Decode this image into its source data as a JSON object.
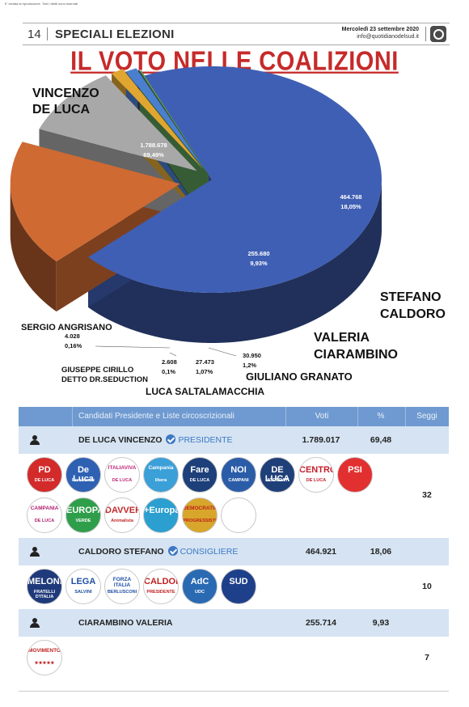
{
  "page": {
    "copyright": "E' vietata la riproduzione. Tutti i diritti sono riservati",
    "page_number": "14",
    "section": "SPECIALI ELEZIONI",
    "date": "Mercoledì 23 settembre 2020",
    "email": "info@quotidianodelsud.it"
  },
  "chart_data": {
    "type": "pie",
    "title": "IL VOTO NELLE COALIZIONI",
    "slices": [
      {
        "name": "VINCENZO DE LUCA",
        "value": 1788678,
        "value_label": "1.788.678",
        "percent_label": "69,49%",
        "percent": 69.49,
        "color": "#3f5fb4"
      },
      {
        "name": "STEFANO CALDORO",
        "value": 464768,
        "value_label": "464.768",
        "percent_label": "18,05%",
        "percent": 18.05,
        "color": "#cf6a33"
      },
      {
        "name": "VALERIA CIARAMBINO",
        "value": 255680,
        "value_label": "255.680",
        "percent_label": "9,93%",
        "percent": 9.93,
        "color": "#a8a8a8"
      },
      {
        "name": "GIULIANO GRANATO",
        "value": 30950,
        "value_label": "30.950",
        "percent_label": "1,2%",
        "percent": 1.2,
        "color": "#e0a630"
      },
      {
        "name": "LUCA SALTALAMACCHIA",
        "value": 27473,
        "value_label": "27.473",
        "percent_label": "1,07%",
        "percent": 1.07,
        "color": "#4a7fd0"
      },
      {
        "name": "GIUSEPPE CIRILLO DETTO DR.SEDUCTION",
        "value": 2608,
        "value_label": "2.608",
        "percent_label": "0,1%",
        "percent": 0.1,
        "color": "#3a3a3a"
      },
      {
        "name": "SERGIO ANGRISANO",
        "value": 4028,
        "value_label": "4.028",
        "percent_label": "0,16%",
        "percent": 0.16,
        "color": "#5a9a5a"
      }
    ],
    "labels": {
      "de_luca_1": "VINCENZO",
      "de_luca_2": "DE LUCA",
      "caldoro_1": "STEFANO",
      "caldoro_2": "CALDORO",
      "ciarambino_1": "VALERIA",
      "ciarambino_2": "CIARAMBINO",
      "granato": "GIULIANO GRANATO",
      "saltalamacchia": "LUCA SALTALAMACCHIA",
      "cirillo_1": "GIUSEPPE CIRILLO",
      "cirillo_2": "DETTO DR.SEDUCTION",
      "angrisano": "SERGIO ANGRISANO"
    }
  },
  "table": {
    "headers": {
      "candidates": "Candidati Presidente e Liste circoscrizionali",
      "votes": "Voti",
      "percent": "%",
      "seats": "Seggi"
    },
    "candidates": [
      {
        "name": "DE LUCA VINCENZO",
        "role": "PRESIDENTE",
        "votes": "1.789.017",
        "percent": "69,48",
        "seats": "32",
        "lists": [
          {
            "line1": "PD",
            "line2": "DE LUCA",
            "color": "#d32a2a",
            "text_color": "#ffffff"
          },
          {
            "line1": "De Luca",
            "line2": "Presidente",
            "color": "#2f61b3",
            "text_color": "#ffffff"
          },
          {
            "line1": "ITALIAVIVA",
            "line2": "DE LUCA",
            "color": "#ffffff",
            "text_color": "#c0287a"
          },
          {
            "line1": "Campania",
            "line2": "libera",
            "color": "#3b9fd8",
            "text_color": "#ffffff"
          },
          {
            "line1": "Fare",
            "line2": "DE LUCA",
            "color": "#1d3f7a",
            "text_color": "#ffffff"
          },
          {
            "line1": "NOI",
            "line2": "CAMPANI",
            "color": "#2a5ca8",
            "text_color": "#ffffff"
          },
          {
            "line1": "DE LUCA",
            "line2": "MODERATI",
            "color": "#1f3f78",
            "text_color": "#ffffff"
          },
          {
            "line1": "CENTRO",
            "line2": "DE LUCA",
            "color": "#ffffff",
            "text_color": "#c41e2a"
          },
          {
            "line1": "PSI",
            "line2": "",
            "color": "#e23030",
            "text_color": "#ffffff"
          },
          {
            "line1": "CAMPANIA",
            "line2": "DE LUCA",
            "color": "#ffffff",
            "text_color": "#b02070"
          },
          {
            "line1": "EUROPA",
            "line2": "VERDE",
            "color": "#2f9e4a",
            "text_color": "#ffffff"
          },
          {
            "line1": "DAVVERO",
            "line2": "Animalista",
            "color": "#ffffff",
            "text_color": "#c0282a"
          },
          {
            "line1": "+Europa",
            "line2": "",
            "color": "#2a9fd0",
            "text_color": "#ffffff"
          },
          {
            "line1": "DEMOCRATICI",
            "line2": "PROGRESSISTI",
            "color": "#d8a62a",
            "text_color": "#c02020"
          },
          {
            "line1": "",
            "line2": "",
            "color": "#ffffff",
            "text_color": "#2f7a3a"
          }
        ]
      },
      {
        "name": "CALDORO STEFANO",
        "role": "CONSIGLIERE",
        "votes": "464.921",
        "percent": "18,06",
        "seats": "10",
        "lists": [
          {
            "line1": "MELONI",
            "line2": "FRATELLI D'ITALIA",
            "color": "#1e3a7a",
            "text_color": "#ffffff"
          },
          {
            "line1": "LEGA",
            "line2": "SALVINI",
            "color": "#ffffff",
            "text_color": "#1e4fa3"
          },
          {
            "line1": "FORZA ITALIA",
            "line2": "BERLUSCONI",
            "color": "#ffffff",
            "text_color": "#1e4fa3"
          },
          {
            "line1": "CALDORO",
            "line2": "PRESIDENTE",
            "color": "#ffffff",
            "text_color": "#c02020"
          },
          {
            "line1": "AdC",
            "line2": "UDC",
            "color": "#2a6ab3",
            "text_color": "#ffffff"
          },
          {
            "line1": "SUD",
            "line2": "",
            "color": "#1e3f8a",
            "text_color": "#ffffff"
          }
        ]
      },
      {
        "name": "CIARAMBINO VALERIA",
        "role": "",
        "votes": "255.714",
        "percent": "9,93",
        "seats": "7",
        "lists": [
          {
            "line1": "MOVIMENTO",
            "line2": "★★★★★",
            "color": "#ffffff",
            "text_color": "#c02020"
          }
        ]
      }
    ]
  }
}
